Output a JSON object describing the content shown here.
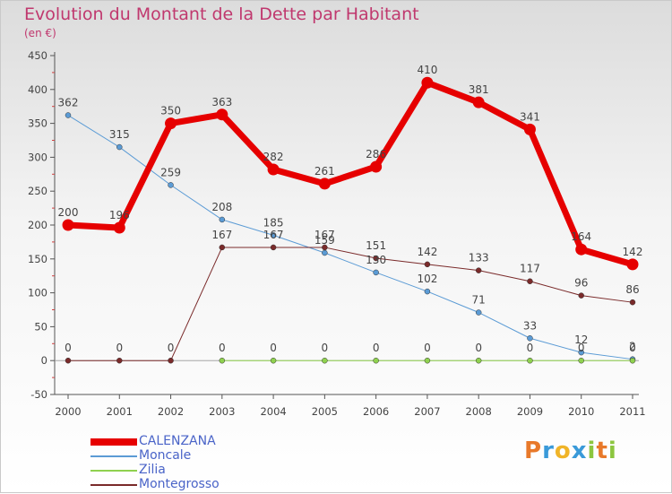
{
  "title": "Evolution du Montant de la Dette par Habitant",
  "unit": "(en €)",
  "colors": {
    "title": "#c0386e",
    "axis": "#555555",
    "grid": "#cfcfcf",
    "label": "#444444",
    "legend_text": "#4a64c8"
  },
  "logo": {
    "text": "Proxiti",
    "letters": [
      {
        "ch": "P",
        "color": "#e8792a"
      },
      {
        "ch": "r",
        "color": "#3a9ad9"
      },
      {
        "ch": "o",
        "color": "#f0b428"
      },
      {
        "ch": "x",
        "color": "#3a9ad9"
      },
      {
        "ch": "i",
        "color": "#8cc63f"
      },
      {
        "ch": "t",
        "color": "#e8792a"
      },
      {
        "ch": "i",
        "color": "#8cc63f"
      }
    ]
  },
  "chart_data": {
    "type": "line",
    "x": [
      "2000",
      "2001",
      "2002",
      "2003",
      "2004",
      "2005",
      "2006",
      "2007",
      "2008",
      "2009",
      "2010",
      "2011"
    ],
    "ylim": [
      -50,
      450
    ],
    "yticks": [
      -50,
      0,
      50,
      100,
      150,
      200,
      250,
      300,
      350,
      400,
      450
    ],
    "grid": false,
    "legend_position": "bottom-left",
    "series": [
      {
        "name": "CALENZANA",
        "color": "#e60000",
        "width": 7,
        "marker_radius": 6.5,
        "values": [
          200,
          196,
          350,
          363,
          282,
          261,
          286,
          410,
          381,
          341,
          164,
          142
        ]
      },
      {
        "name": "Moncale",
        "color": "#5b9bd5",
        "width": 1,
        "marker_radius": 3,
        "values": [
          362,
          315,
          259,
          208,
          185,
          159,
          130,
          102,
          71,
          33,
          12,
          2
        ]
      },
      {
        "name": "Zilia",
        "color": "#8fd14f",
        "width": 1,
        "marker_radius": 3,
        "values": [
          null,
          null,
          null,
          0,
          0,
          0,
          0,
          0,
          0,
          0,
          0,
          0
        ]
      },
      {
        "name": "Montegrosso",
        "color": "#7a2a2a",
        "width": 1,
        "marker_radius": 3,
        "values": [
          0,
          0,
          0,
          167,
          167,
          167,
          151,
          142,
          133,
          117,
          96,
          86
        ]
      }
    ]
  }
}
